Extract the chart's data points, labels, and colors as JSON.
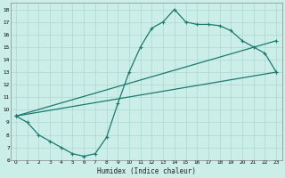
{
  "xlabel": "Humidex (Indice chaleur)",
  "bg_color": "#cceee8",
  "line_color": "#1a7a6e",
  "xlim": [
    -0.5,
    23.5
  ],
  "ylim": [
    6,
    18.5
  ],
  "xticks": [
    0,
    1,
    2,
    3,
    4,
    5,
    6,
    7,
    8,
    9,
    10,
    11,
    12,
    13,
    14,
    15,
    16,
    17,
    18,
    19,
    20,
    21,
    22,
    23
  ],
  "yticks": [
    6,
    7,
    8,
    9,
    10,
    11,
    12,
    13,
    14,
    15,
    16,
    17,
    18
  ],
  "line1_x": [
    0,
    1,
    2,
    3,
    4,
    5,
    6,
    7,
    8,
    9,
    10,
    11,
    12,
    13,
    14,
    15,
    16,
    17,
    18,
    19,
    20,
    21,
    22,
    23
  ],
  "line1_y": [
    9.5,
    9,
    8,
    7.5,
    7,
    6.5,
    6.3,
    6.5,
    7.8,
    10.5,
    13,
    15,
    16.5,
    17,
    18,
    17,
    16.8,
    16.8,
    16.7,
    16.3,
    15.5,
    15,
    14.5,
    13
  ],
  "line2_x": [
    0,
    23
  ],
  "line2_y": [
    9.5,
    13
  ],
  "line3_x": [
    0,
    23
  ],
  "line3_y": [
    9.5,
    15.5
  ],
  "grid_color": "#aad8d0",
  "marker": "+",
  "markersize": 3,
  "linewidth": 0.9
}
